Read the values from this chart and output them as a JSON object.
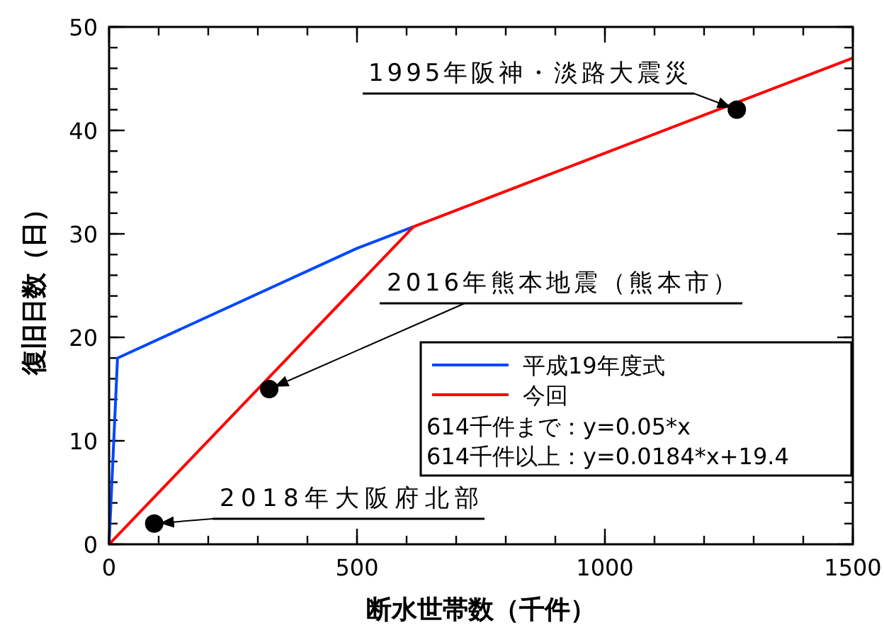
{
  "chart_data": {
    "type": "line",
    "xlabel": "断水世帯数（千件）",
    "ylabel": "復旧日数（日）",
    "xlim": [
      0,
      1500
    ],
    "ylim": [
      0,
      50
    ],
    "xticks": [
      0,
      500,
      1000,
      1500
    ],
    "yticks": [
      0,
      10,
      20,
      30,
      40,
      50
    ],
    "grid": false,
    "legend": "right",
    "marker": "none",
    "line_style": "solid",
    "series": [
      {
        "name": "平成19年度式",
        "color": "#0047ff",
        "x": [
          0,
          17,
          500,
          614
        ],
        "values": [
          0,
          18,
          28.6,
          30.7
        ]
      },
      {
        "name": "今回",
        "color": "#ff0000",
        "x": [
          0,
          614,
          1500
        ],
        "values": [
          0,
          30.7,
          47
        ]
      },
      {
        "type": "scatter",
        "marker": "circle",
        "color": "#000000",
        "x": [
          1266,
          323,
          91
        ],
        "values": [
          42,
          15,
          2
        ]
      }
    ],
    "annotations": [
      {
        "text": "1995年阪神・淡路大震災",
        "x": 1266,
        "y": 42
      },
      {
        "text": "2016年熊本地震（熊本市）",
        "x": 323,
        "y": 15
      },
      {
        "text": "2018年大阪府北部",
        "x": 91,
        "y": 2
      },
      "614千件まで：y=0.05*x",
      "614千件以上：y=0.0184*x+19.4"
    ]
  }
}
